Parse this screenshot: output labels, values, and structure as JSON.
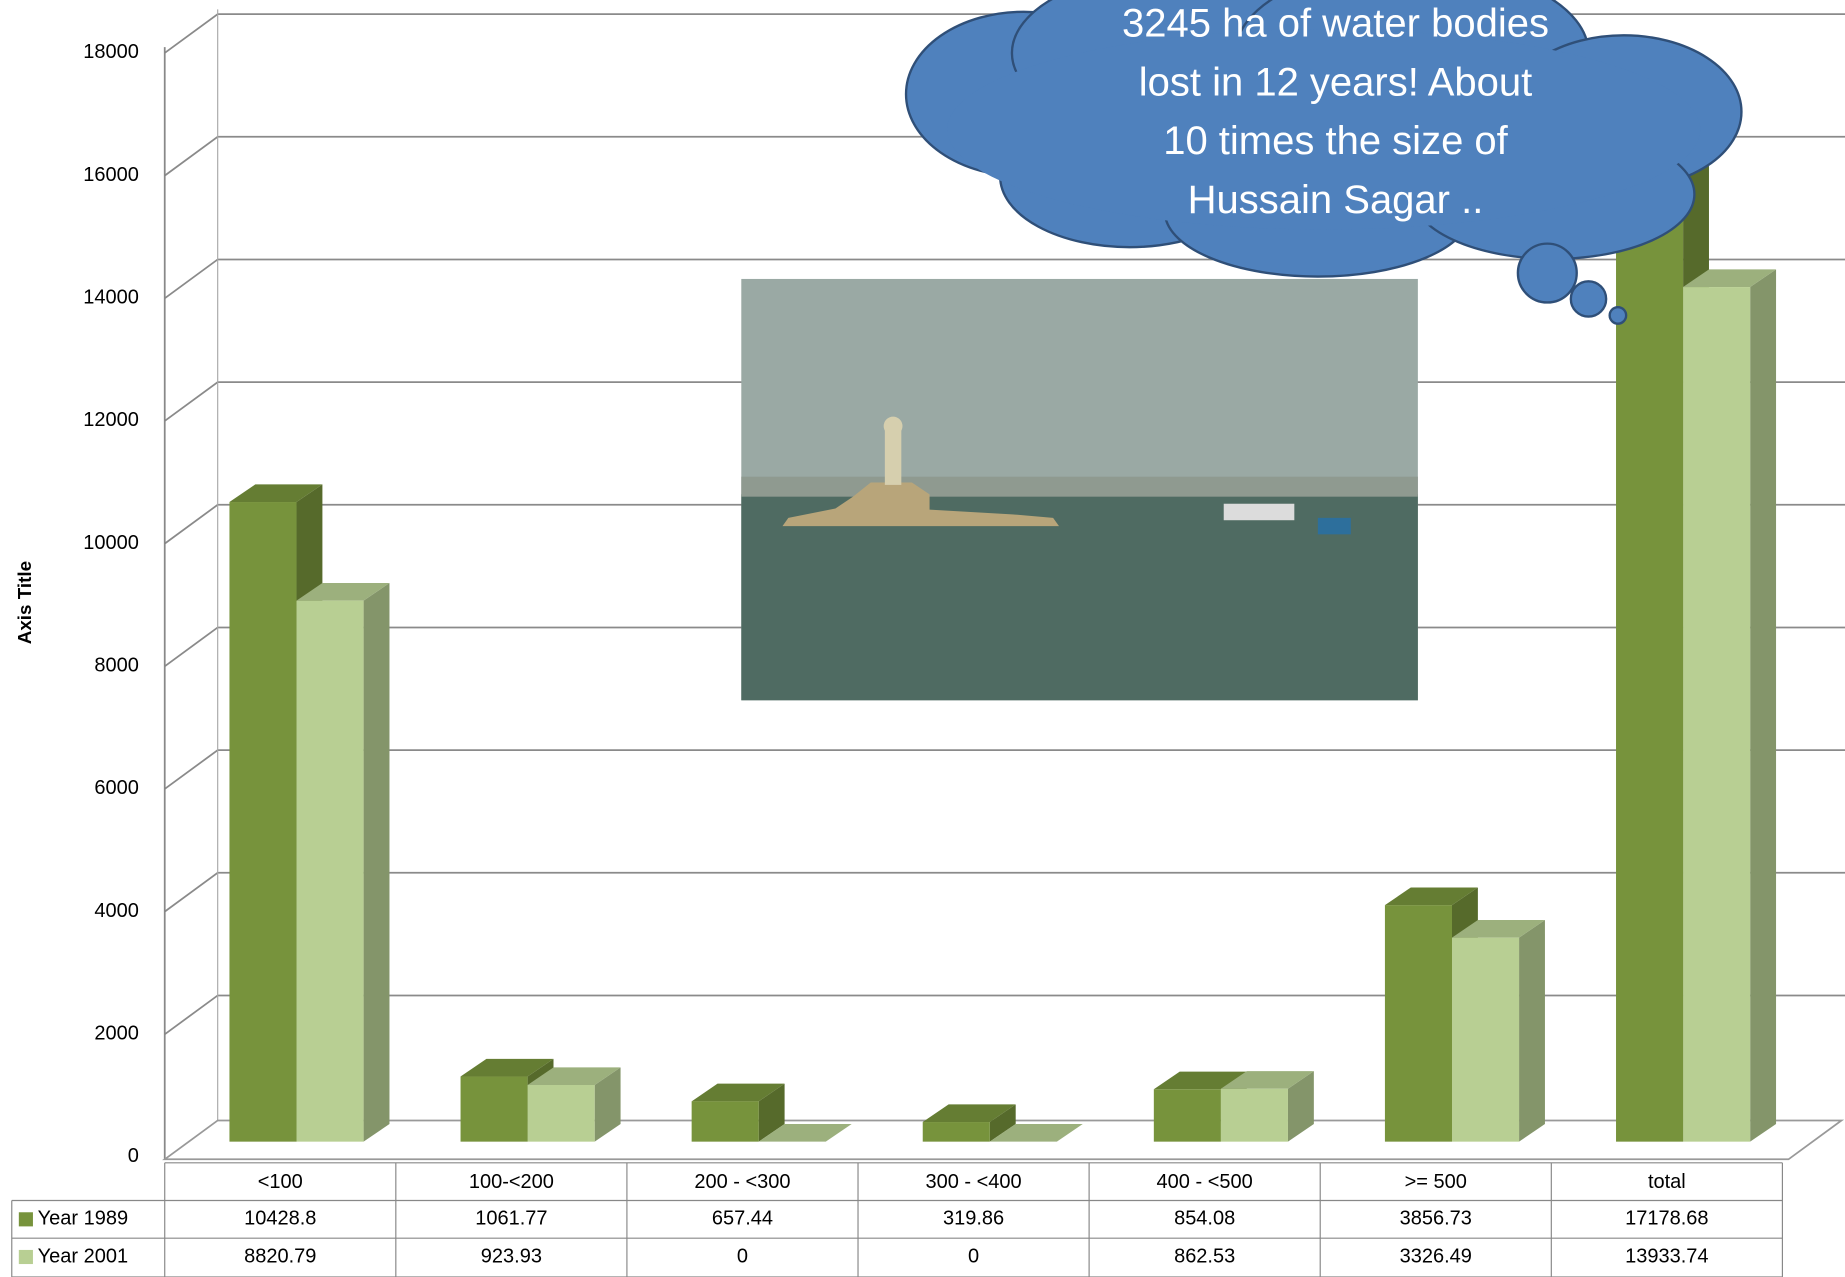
{
  "chart_data": {
    "type": "bar3d",
    "y_axis_label": "Axis Title",
    "categories": [
      "<100",
      "100-<200",
      "200 - <300",
      "300 - <400",
      "400 - <500",
      ">= 500",
      "total"
    ],
    "series": [
      {
        "name": "Year 1989",
        "color": "#77933c",
        "values": [
          10428.8,
          1061.77,
          657.44,
          319.86,
          854.08,
          3856.73,
          17178.68
        ]
      },
      {
        "name": "Year 2001",
        "color": "#b8cf93",
        "values": [
          8820.79,
          923.93,
          0,
          0,
          862.53,
          3326.49,
          13933.74
        ]
      }
    ],
    "ylim": [
      0,
      18000
    ],
    "yticks": [
      0,
      2000,
      4000,
      6000,
      8000,
      10000,
      12000,
      14000,
      16000,
      18000
    ],
    "grid": true,
    "data_table": true,
    "annotation": [
      "3245 ha of water bodies",
      "lost in 12 years!  About",
      "10 times the size of",
      "Hussain Sagar .."
    ]
  }
}
